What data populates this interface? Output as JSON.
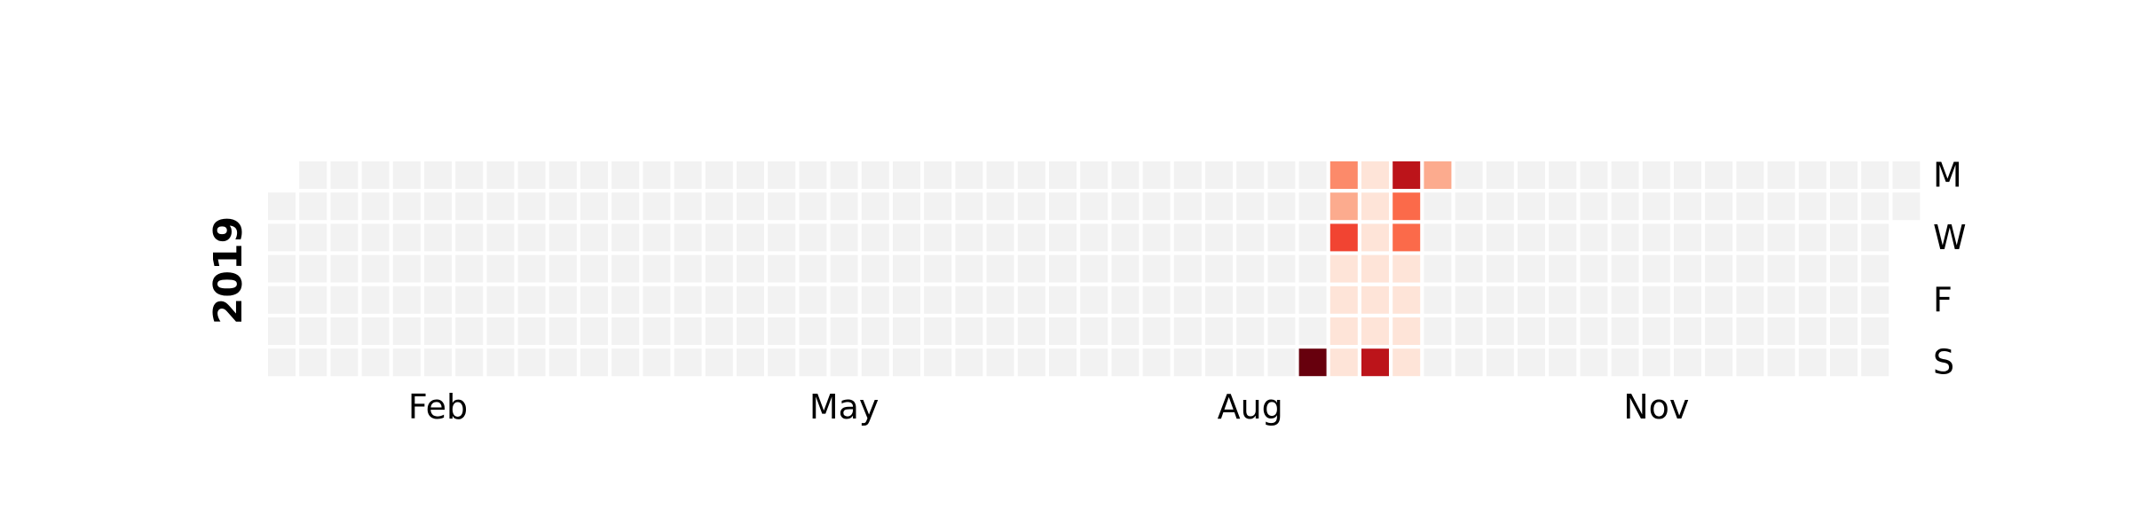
{
  "chart_data": {
    "type": "heatmap",
    "title": "",
    "year_label": "2019",
    "empty_color": "#f2f2f2",
    "colorscale": "Reds",
    "weeks": 53,
    "month_labels": [
      {
        "label": "Feb",
        "week": 5
      },
      {
        "label": "May",
        "week": 18
      },
      {
        "label": "Aug",
        "week": 31
      },
      {
        "label": "Nov",
        "week": 44
      }
    ],
    "day_labels": [
      {
        "label": "M",
        "day": 0
      },
      {
        "label": "W",
        "day": 2
      },
      {
        "label": "F",
        "day": 4
      },
      {
        "label": "S",
        "day": 6
      }
    ],
    "first_day_offset": 1,
    "last_week_days": 2,
    "values_max": 10,
    "values": [
      {
        "week": 33,
        "day": 6,
        "value": 10
      },
      {
        "week": 34,
        "day": 0,
        "value": 4
      },
      {
        "week": 34,
        "day": 1,
        "value": 3
      },
      {
        "week": 34,
        "day": 2,
        "value": 6
      },
      {
        "week": 34,
        "day": 3,
        "value": 1
      },
      {
        "week": 34,
        "day": 4,
        "value": 1
      },
      {
        "week": 34,
        "day": 5,
        "value": 1
      },
      {
        "week": 34,
        "day": 6,
        "value": 1
      },
      {
        "week": 35,
        "day": 0,
        "value": 1
      },
      {
        "week": 35,
        "day": 1,
        "value": 1
      },
      {
        "week": 35,
        "day": 2,
        "value": 1
      },
      {
        "week": 35,
        "day": 3,
        "value": 1
      },
      {
        "week": 35,
        "day": 4,
        "value": 1
      },
      {
        "week": 35,
        "day": 5,
        "value": 1
      },
      {
        "week": 35,
        "day": 6,
        "value": 8
      },
      {
        "week": 36,
        "day": 0,
        "value": 8
      },
      {
        "week": 36,
        "day": 1,
        "value": 5
      },
      {
        "week": 36,
        "day": 2,
        "value": 5
      },
      {
        "week": 36,
        "day": 3,
        "value": 1
      },
      {
        "week": 36,
        "day": 4,
        "value": 1
      },
      {
        "week": 36,
        "day": 5,
        "value": 1
      },
      {
        "week": 36,
        "day": 6,
        "value": 1
      },
      {
        "week": 37,
        "day": 0,
        "value": 3
      }
    ]
  }
}
